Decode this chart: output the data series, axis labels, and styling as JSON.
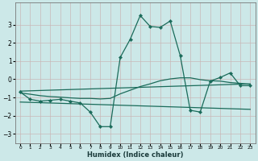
{
  "xlabel": "Humidex (Indice chaleur)",
  "background_color": "#cce8e8",
  "grid_color": "#c8b8b8",
  "line_color": "#1a6b5a",
  "xlim": [
    -0.5,
    23.5
  ],
  "ylim": [
    -3.5,
    4.2
  ],
  "yticks": [
    -3,
    -2,
    -1,
    0,
    1,
    2,
    3
  ],
  "xticks": [
    0,
    1,
    2,
    3,
    4,
    5,
    6,
    7,
    8,
    9,
    10,
    11,
    12,
    13,
    14,
    15,
    16,
    17,
    18,
    19,
    20,
    21,
    22,
    23
  ],
  "line1_x": [
    0,
    1,
    2,
    3,
    4,
    5,
    6,
    7,
    8,
    9,
    10,
    11,
    12,
    13,
    14,
    15,
    16,
    17,
    18,
    19,
    20,
    21,
    22,
    23
  ],
  "line1_y": [
    -0.7,
    -1.1,
    -1.2,
    -1.15,
    -1.1,
    -1.2,
    -1.3,
    -1.8,
    -2.6,
    -2.6,
    1.2,
    2.2,
    3.5,
    2.9,
    2.85,
    3.2,
    1.3,
    -1.7,
    -1.8,
    -0.1,
    0.1,
    0.35,
    -0.35,
    -0.35
  ],
  "line2_x": [
    0,
    1,
    2,
    3,
    4,
    5,
    6,
    7,
    8,
    9,
    10,
    11,
    12,
    13,
    14,
    15,
    16,
    17,
    18,
    19,
    20,
    21,
    22,
    23
  ],
  "line2_y": [
    -0.75,
    -0.82,
    -0.9,
    -0.95,
    -0.98,
    -1.02,
    -1.05,
    -1.05,
    -1.08,
    -1.05,
    -0.8,
    -0.6,
    -0.4,
    -0.25,
    -0.08,
    0.02,
    0.08,
    0.08,
    -0.02,
    -0.08,
    -0.1,
    -0.18,
    -0.22,
    -0.28
  ],
  "line3_x": [
    0,
    23
  ],
  "line3_y": [
    -0.65,
    -0.25
  ],
  "line4_x": [
    0,
    23
  ],
  "line4_y": [
    -1.25,
    -1.65
  ]
}
